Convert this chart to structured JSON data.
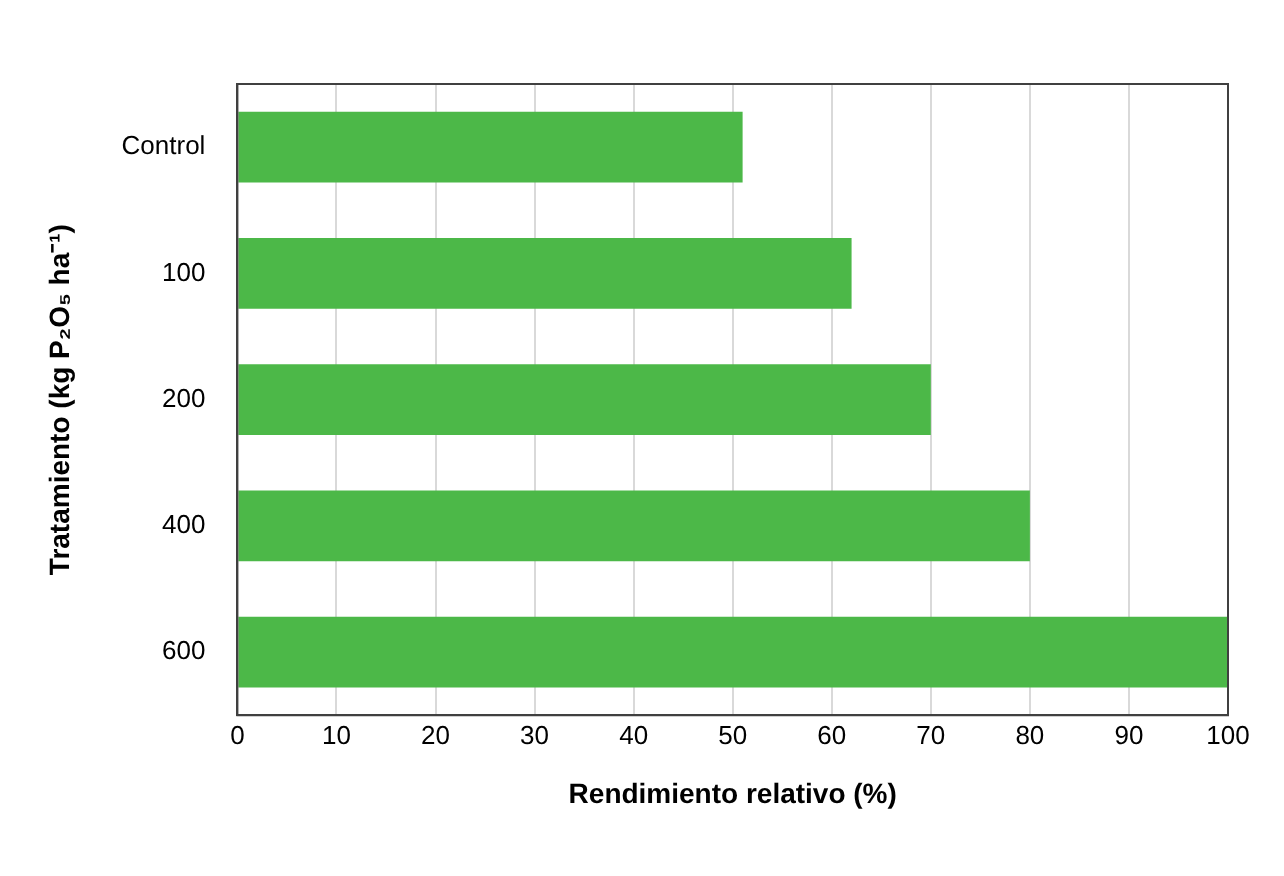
{
  "chart_data": {
    "type": "bar",
    "orientation": "horizontal",
    "xlabel": "Rendimiento relativo (%)",
    "ylabel": "Tratamiento (kg P₂O₅ ha⁻¹)",
    "categories": [
      "Control",
      "100",
      "200",
      "400",
      "600"
    ],
    "values": [
      51,
      62,
      70,
      80,
      100
    ],
    "color": "#4cb848",
    "xlim": [
      0,
      100
    ],
    "xticks": [
      0,
      10,
      20,
      30,
      40,
      50,
      60,
      70,
      80,
      90,
      100
    ],
    "grid": "x",
    "legend": false
  }
}
